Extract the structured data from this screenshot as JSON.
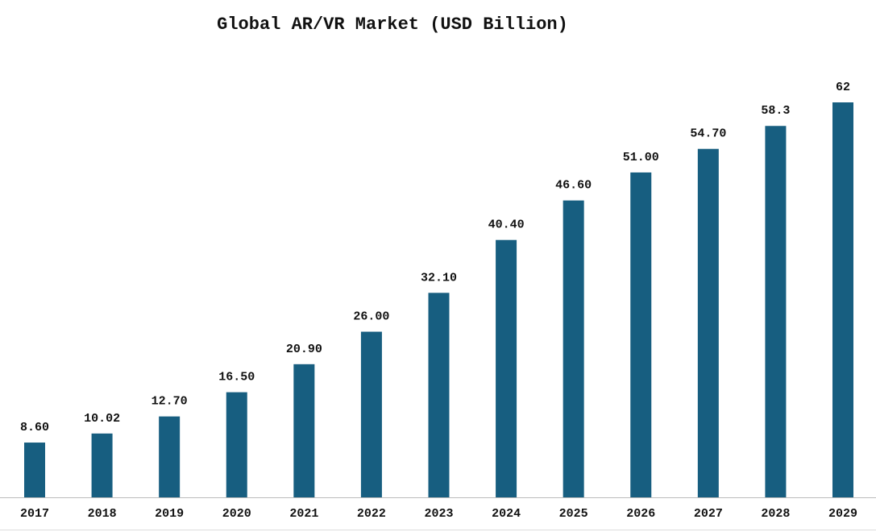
{
  "chart_data": {
    "type": "bar",
    "title": "Global AR/VR Market (USD Billion)",
    "categories": [
      "2017",
      "2018",
      "2019",
      "2020",
      "2021",
      "2022",
      "2023",
      "2024",
      "2025",
      "2026",
      "2027",
      "2028",
      "2029"
    ],
    "values": [
      8.6,
      10.02,
      12.7,
      16.5,
      20.9,
      26,
      32.1,
      40.4,
      46.6,
      51,
      54.7,
      58.3,
      62
    ],
    "value_labels": [
      "8.60",
      "10.02",
      "12.70",
      "16.50",
      "20.90",
      "26.00",
      "32.10",
      "40.40",
      "46.60",
      "51.00",
      "54.70",
      "58.3",
      "62"
    ],
    "color": "#175e80"
  }
}
